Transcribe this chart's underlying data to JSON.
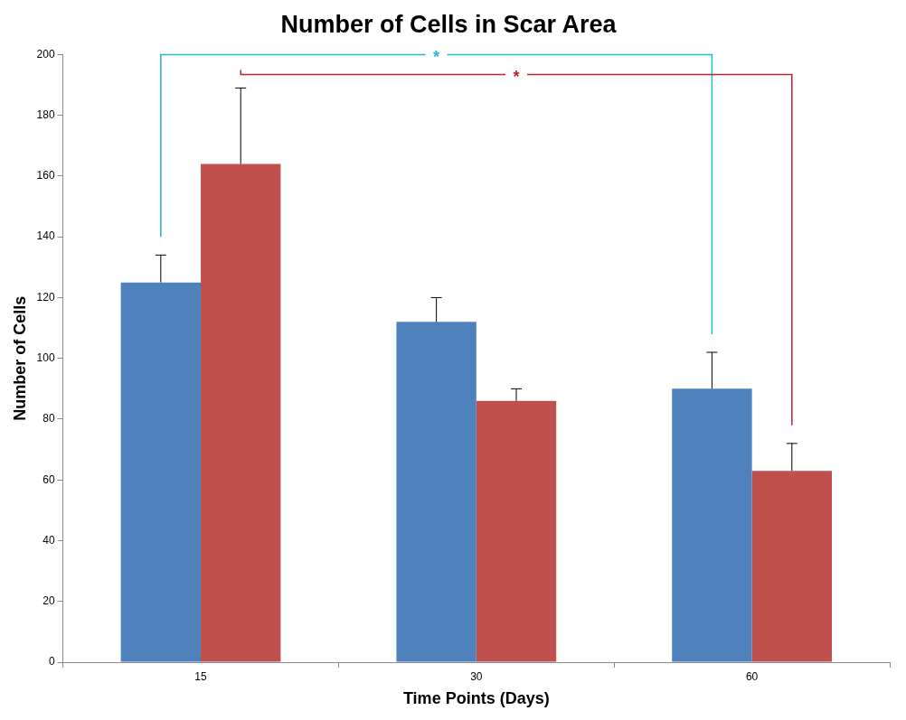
{
  "chart_data": {
    "type": "bar",
    "title": "Number of Cells in Scar Area",
    "xlabel": "Time Points (Days)",
    "ylabel": "Number of Cells",
    "categories": [
      "15",
      "30",
      "60"
    ],
    "series": [
      {
        "color": "#4f81bd",
        "values": [
          125,
          112,
          90
        ],
        "errors": [
          [
            125,
            134
          ],
          [
            112,
            120
          ],
          [
            90,
            102
          ]
        ]
      },
      {
        "color": "#c0504d",
        "values": [
          164,
          86,
          63
        ],
        "errors": [
          [
            164,
            189
          ],
          [
            86,
            90
          ],
          [
            63,
            72
          ]
        ]
      }
    ],
    "ylim": [
      0,
      200
    ],
    "yticks": [
      0,
      20,
      40,
      60,
      80,
      100,
      120,
      140,
      160,
      180,
      200
    ],
    "grid": false,
    "legend": false,
    "annotations": [
      "*",
      "*"
    ]
  }
}
